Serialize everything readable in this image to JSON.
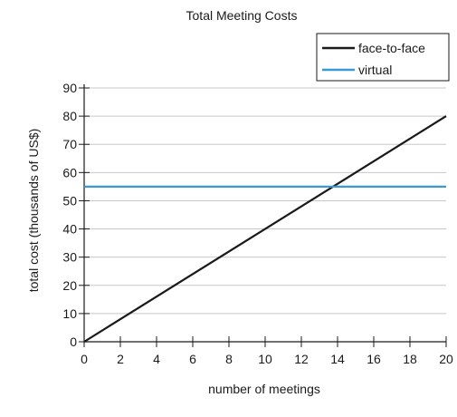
{
  "chart_data": {
    "type": "line",
    "title": "Total Meeting Costs",
    "xlabel": "number of meetings",
    "ylabel": "total cost (thousands of US$)",
    "xlim": [
      0,
      20
    ],
    "ylim": [
      0,
      90
    ],
    "xticks": [
      0,
      2,
      4,
      6,
      8,
      10,
      12,
      14,
      16,
      18,
      20
    ],
    "yticks": [
      0,
      10,
      20,
      30,
      40,
      50,
      60,
      70,
      80,
      90
    ],
    "grid": "horizontal",
    "legend": "top-right",
    "series": [
      {
        "name": "face-to-face",
        "color": "#1a1a1a",
        "x": [
          0,
          20
        ],
        "y": [
          0,
          80
        ]
      },
      {
        "name": "virtual",
        "color": "#3a9ad0",
        "x": [
          0,
          20
        ],
        "y": [
          55,
          55
        ]
      }
    ]
  }
}
